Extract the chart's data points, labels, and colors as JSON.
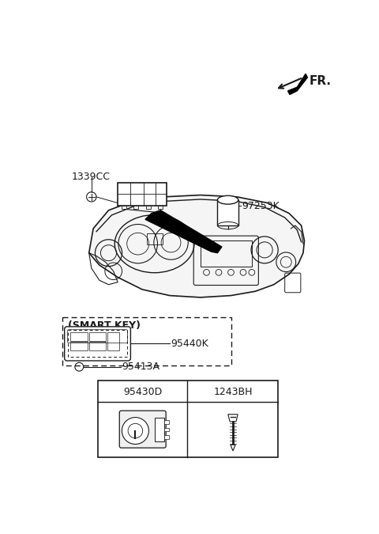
{
  "bg_color": "#ffffff",
  "line_color": "#1a1a1a",
  "fig_width": 4.8,
  "fig_height": 6.75,
  "dpi": 100,
  "fr_label": "FR.",
  "label_1339CC": "1339CC",
  "label_97253K": "97253K",
  "label_95440K": "95440K",
  "label_95413A": "95413A",
  "label_95430D": "95430D",
  "label_1243BH": "1243BH",
  "smart_key_label": "(SMART KEY)"
}
